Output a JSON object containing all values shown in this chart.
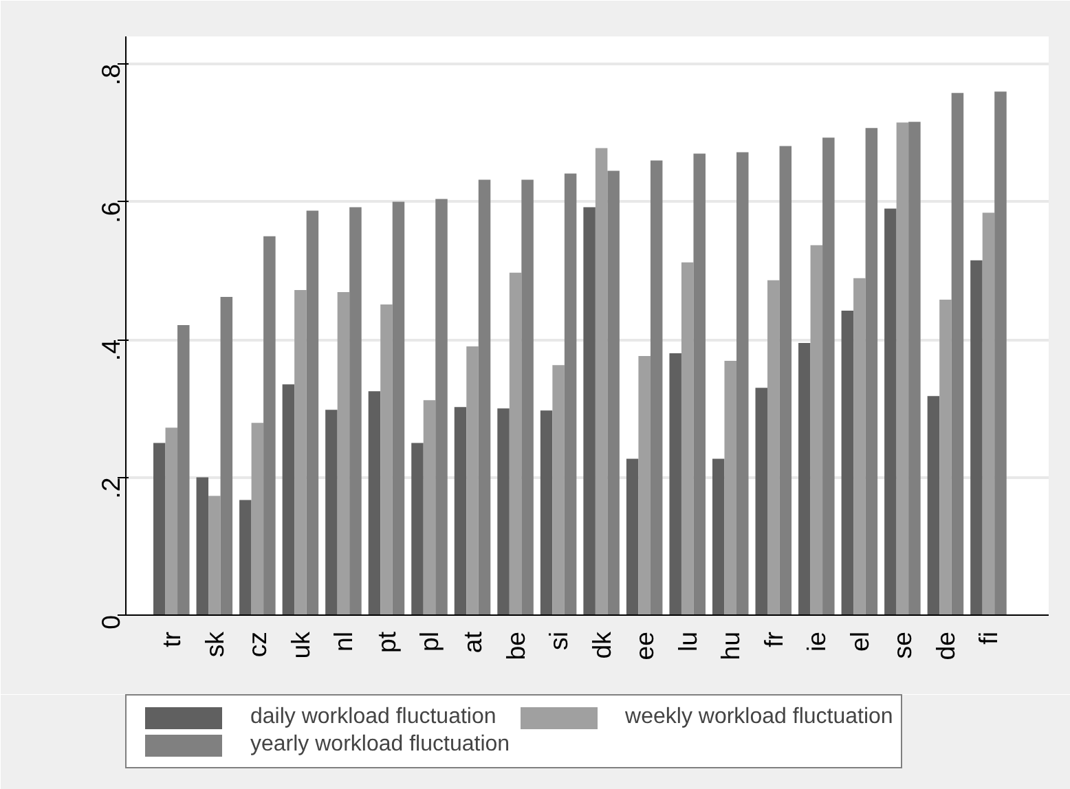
{
  "chart_data": {
    "type": "bar",
    "categories": [
      "tr",
      "sk",
      "cz",
      "uk",
      "nl",
      "pt",
      "pl",
      "at",
      "be",
      "si",
      "dk",
      "ee",
      "lu",
      "hu",
      "fr",
      "ie",
      "el",
      "se",
      "de",
      "fi"
    ],
    "series": [
      {
        "name": "daily workload fluctuation",
        "color": "#606060",
        "values": [
          0.25,
          0.2,
          0.167,
          0.335,
          0.298,
          0.325,
          0.25,
          0.302,
          0.3,
          0.297,
          0.592,
          0.227,
          0.38,
          0.227,
          0.33,
          0.395,
          0.442,
          0.59,
          0.318,
          0.515
        ]
      },
      {
        "name": "weekly workload fluctuation",
        "color": "#a0a0a0",
        "values": [
          0.272,
          0.173,
          0.279,
          0.472,
          0.469,
          0.451,
          0.312,
          0.39,
          0.497,
          0.363,
          0.678,
          0.376,
          0.512,
          0.369,
          0.486,
          0.537,
          0.489,
          0.715,
          0.458,
          0.584
        ]
      },
      {
        "name": "yearly workload fluctuation",
        "color": "#808080",
        "values": [
          0.421,
          0.462,
          0.55,
          0.587,
          0.592,
          0.6,
          0.604,
          0.632,
          0.632,
          0.641,
          0.645,
          0.66,
          0.67,
          0.672,
          0.681,
          0.693,
          0.707,
          0.716,
          0.758,
          0.76
        ]
      }
    ],
    "ylim": [
      0,
      0.84
    ],
    "yticks": [
      0,
      {
        "value": 0.2,
        "label": ".2"
      },
      {
        "value": 0.4,
        "label": ".4"
      },
      {
        "value": 0.6,
        "label": ".6"
      },
      {
        "value": 0.8,
        "label": ".8"
      }
    ],
    "grid": "y",
    "legend": "bottom"
  }
}
